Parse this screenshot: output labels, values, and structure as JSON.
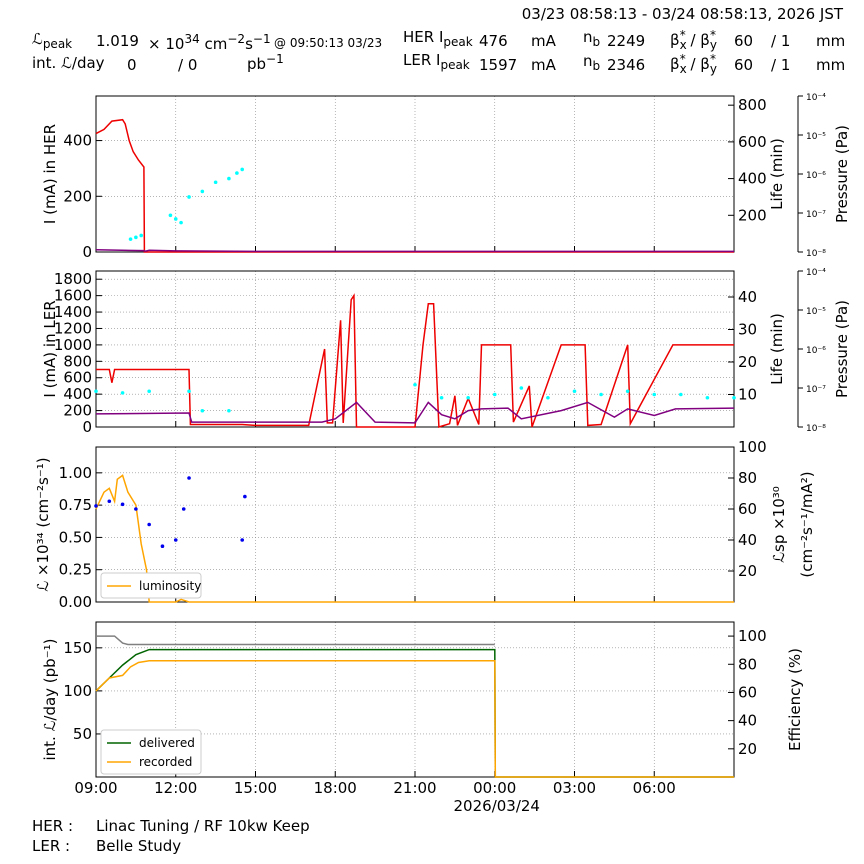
{
  "header": {
    "range": "03/23 08:58:13 - 03/24 08:58:13, 2026 JST",
    "lpeak_label": "ℒ",
    "lpeak_sub": "peak",
    "lpeak_value": "1.019",
    "lpeak_unit_prefix": "× 10",
    "lpeak_unit_exp": "34",
    "lpeak_unit_mid": " cm",
    "lpeak_unit_exp2": "−2",
    "lpeak_unit_s": "s",
    "lpeak_unit_exp3": "−1",
    "lpeak_time": "@ 09:50:13 03/23",
    "intl_label": "int. ℒ/day",
    "intl_value": "0",
    "intl_slash": "/ 0",
    "intl_unit": "pb",
    "intl_unit_exp": "−1",
    "her_label": "HER I",
    "her_sub": "peak",
    "her_value": "476",
    "her_unit": "mA",
    "her_nb_label": "n",
    "her_nb_sub": "b",
    "her_nb_value": "2249",
    "her_beta": "β",
    "her_beta_x": "x",
    "her_beta_y": "y",
    "her_beta_value": "60",
    "her_beta_over": "/ 1",
    "her_beta_unit": "mm",
    "ler_label": "LER I",
    "ler_sub": "peak",
    "ler_value": "1597",
    "ler_unit": "mA",
    "ler_nb_value": "2346",
    "ler_beta_value": "60",
    "ler_beta_over": "/ 1",
    "ler_beta_unit": "mm"
  },
  "footer": {
    "her_label": "HER :",
    "her_status": "Linac Tuning / RF 10kw Keep",
    "ler_label": "LER :",
    "ler_status": "Belle Study"
  },
  "x_axis": {
    "ticks": [
      "09:00",
      "12:00",
      "15:00",
      "18:00",
      "21:00",
      "00:00",
      "03:00",
      "06:00"
    ],
    "date_label": "2026/03/24"
  },
  "colors": {
    "current": "#ee0000",
    "life": "#00ffff",
    "pressure": "#800080",
    "lsp": "#0000ee",
    "luminosity": "#ffa500",
    "delivered": "#006400",
    "recorded": "#ffa500",
    "efficiency": "#808080",
    "grid": "#888888"
  },
  "chart_data": [
    {
      "type": "line",
      "title": "",
      "ylabel": "I (mA) in HER",
      "ylabel2": "Life (min)",
      "ylabel3": "Pressure (Pa)",
      "ylim": [
        0,
        560
      ],
      "yticks": [
        0,
        200,
        400
      ],
      "y2lim": [
        0,
        850
      ],
      "y2ticks": [
        200,
        400,
        600,
        800
      ],
      "pressure_ticks": [
        "10⁻⁴",
        "10⁻⁵",
        "10⁻⁶",
        "10⁻⁷",
        "10⁻⁸"
      ],
      "series": [
        {
          "name": "current",
          "x": [
            9.0,
            9.3,
            9.6,
            10.0,
            10.1,
            10.25,
            10.4,
            10.6,
            10.8,
            10.82,
            10.85,
            12.0,
            15.0,
            24.0,
            33.0
          ],
          "y": [
            425,
            440,
            470,
            475,
            460,
            400,
            360,
            330,
            305,
            0,
            0,
            0,
            0,
            0,
            0
          ]
        },
        {
          "name": "pressure",
          "x": [
            9.0,
            10.8,
            10.85,
            11.0,
            12.0,
            15.0,
            24.0,
            33.0
          ],
          "y": [
            8,
            5,
            3,
            6,
            4,
            2,
            2,
            2
          ]
        },
        {
          "name": "life",
          "x": [
            10.3,
            10.5,
            10.7,
            11.8,
            12.0,
            12.2,
            12.5,
            13.0,
            13.5,
            14.0,
            14.3,
            14.5
          ],
          "y": [
            70,
            80,
            90,
            200,
            180,
            160,
            300,
            330,
            380,
            400,
            430,
            450
          ]
        }
      ]
    },
    {
      "type": "line",
      "ylabel": "I (mA) in LER",
      "ylabel2": "Life (min)",
      "ylabel3": "Pressure (Pa)",
      "ylim": [
        0,
        1900
      ],
      "yticks": [
        0,
        200,
        400,
        600,
        800,
        1000,
        1200,
        1400,
        1600,
        1800
      ],
      "y2lim": [
        0,
        48
      ],
      "y2ticks": [
        10,
        20,
        30,
        40
      ],
      "pressure_ticks": [
        "10⁻⁴",
        "10⁻⁵",
        "10⁻⁶",
        "10⁻⁷",
        "10⁻⁸"
      ],
      "series": [
        {
          "name": "current",
          "x": [
            9.0,
            9.5,
            9.6,
            9.7,
            10.0,
            11.0,
            12.5,
            12.55,
            13.0,
            14.5,
            15.0,
            17.0,
            17.6,
            17.7,
            17.9,
            18.2,
            18.3,
            18.6,
            18.7,
            18.8,
            19.3,
            19.6,
            21.0,
            21.3,
            21.5,
            21.7,
            21.9,
            22.3,
            22.5,
            22.6,
            23.0,
            23.4,
            23.5,
            24.2,
            24.6,
            24.7,
            25.3,
            25.4,
            26.5,
            27.4,
            27.5,
            28.0,
            29.0,
            29.1,
            30.7,
            30.8,
            33.0
          ],
          "y": [
            700,
            700,
            540,
            700,
            700,
            700,
            700,
            30,
            30,
            30,
            20,
            20,
            950,
            50,
            50,
            1300,
            50,
            1550,
            1600,
            0,
            0,
            0,
            0,
            1000,
            1500,
            1500,
            0,
            40,
            380,
            20,
            350,
            30,
            1000,
            1000,
            1000,
            60,
            500,
            0,
            1000,
            1000,
            20,
            30,
            1000,
            40,
            1000,
            1000,
            1000
          ]
        },
        {
          "name": "pressure",
          "x": [
            9.0,
            12.5,
            12.6,
            17.5,
            18.0,
            18.8,
            19.5,
            21.0,
            21.5,
            22.0,
            22.5,
            23.0,
            23.5,
            24.5,
            25.0,
            26.5,
            27.5,
            28.5,
            29.0,
            30.0,
            30.8,
            33.0
          ],
          "y": [
            160,
            170,
            60,
            60,
            100,
            300,
            60,
            50,
            300,
            150,
            100,
            200,
            220,
            230,
            100,
            200,
            300,
            120,
            220,
            140,
            220,
            230
          ]
        },
        {
          "name": "life",
          "x": [
            9.0,
            10.0,
            11.0,
            12.5,
            13.0,
            14.0,
            21.0,
            22.0,
            23.0,
            24.0,
            25.0,
            26.0,
            27.0,
            28.0,
            29.0,
            30.0,
            31.0,
            32.0,
            33.0
          ],
          "y": [
            11,
            10.5,
            11,
            11,
            5,
            5,
            13,
            9,
            9,
            10,
            12,
            9,
            11,
            10,
            11,
            10,
            10,
            9,
            9
          ]
        }
      ]
    },
    {
      "type": "scatter",
      "ylabel": "ℒ ×10³⁴ (cm⁻²s⁻¹)",
      "ylabel2": "ℒsp ×10³⁰",
      "ylabel2b": "(cm⁻²s⁻¹/mA²)",
      "ylim": [
        0,
        1.2
      ],
      "yticks": [
        0.0,
        0.25,
        0.5,
        0.75,
        1.0
      ],
      "y2lim": [
        0,
        100
      ],
      "y2ticks": [
        20,
        40,
        60,
        80,
        100
      ],
      "legend": "lower-left",
      "series": [
        {
          "name": "luminosity",
          "x": [
            9.0,
            9.3,
            9.5,
            9.7,
            9.8,
            10.0,
            10.2,
            10.5,
            10.7,
            10.9,
            11.0,
            12.0,
            12.2,
            12.5,
            33.0
          ],
          "y": [
            0.72,
            0.85,
            0.88,
            0.78,
            0.95,
            0.98,
            0.85,
            0.75,
            0.45,
            0.25,
            0.0,
            0.0,
            0.02,
            0.0,
            0.0
          ]
        },
        {
          "name": "lsp",
          "x": [
            9.0,
            9.5,
            10.0,
            10.5,
            11.0,
            11.5,
            12.0,
            12.3,
            12.5,
            14.5,
            14.6
          ],
          "y": [
            62,
            65,
            63,
            60,
            50,
            36,
            40,
            60,
            80,
            40,
            68
          ]
        }
      ]
    },
    {
      "type": "line",
      "ylabel": "int. ℒ/day (pb⁻¹)",
      "ylabel2": "Efficiency (%)",
      "ylim": [
        0,
        180
      ],
      "yticks": [
        50,
        100,
        150
      ],
      "y2lim": [
        0,
        110
      ],
      "y2ticks": [
        20,
        40,
        60,
        80,
        100
      ],
      "legend": "lower-left",
      "series": [
        {
          "name": "delivered",
          "x": [
            9.0,
            9.5,
            10.0,
            10.5,
            11.0,
            24.0,
            24.02,
            33.0
          ],
          "y": [
            100,
            115,
            130,
            142,
            148,
            148,
            0,
            0
          ]
        },
        {
          "name": "recorded",
          "x": [
            9.0,
            9.5,
            10.0,
            10.3,
            10.6,
            11.0,
            24.0,
            24.02,
            33.0
          ],
          "y": [
            100,
            115,
            118,
            128,
            133,
            135,
            135,
            0,
            0
          ]
        },
        {
          "name": "efficiency",
          "x": [
            9.0,
            9.7,
            10.0,
            10.2,
            24.0
          ],
          "y": [
            100,
            100,
            95,
            94,
            94
          ]
        }
      ]
    }
  ]
}
